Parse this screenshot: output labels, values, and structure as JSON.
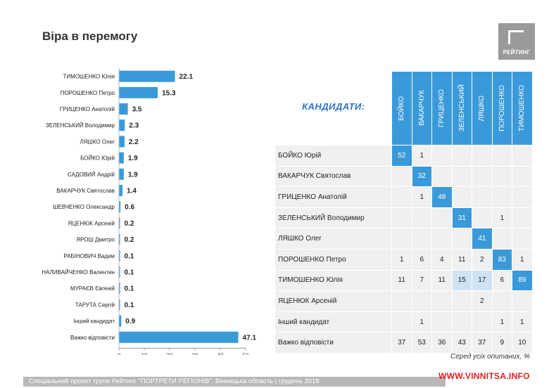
{
  "title": "Віра в перемогу",
  "logo": {
    "text": "РЕЙТИНГ"
  },
  "chart_data": {
    "type": "bar",
    "orientation": "horizontal",
    "categories": [
      "ТИМОШЕНКО Юлія",
      "ПОРОШЕНКО Петро",
      "ГРИЦЕНКО Анатолій",
      "ЗЕЛЕНСЬКИЙ Володимир",
      "ЛЯШКО Олег",
      "БОЙКО Юрій",
      "САДОВИЙ Андрій",
      "ВАКАРЧУК Святослав",
      "ШЕВЧЕНКО Олександр",
      "ЯЦЕНЮК Арсеній",
      "ЯРОШ Дмитро",
      "РАБІНОВИЧ Вадим",
      "НАЛИВАЙЧЕНКО Валентин",
      "МУРАЄВ Євгеній",
      "ТАРУТА Сергій",
      "Інший кандидат",
      "Важко відповісти"
    ],
    "values": [
      22.1,
      15.3,
      3.5,
      2.3,
      2.2,
      1.9,
      1.9,
      1.4,
      0.6,
      0.2,
      0.2,
      0.1,
      0.1,
      0.1,
      0.1,
      0.9,
      47.1
    ],
    "labels": [
      "22.1",
      "15.3",
      "3.5",
      "2.3",
      "2.2",
      "1.9",
      "1.9",
      "1.4",
      "0.6",
      "0.2",
      "0.2",
      "0.1",
      "0.1",
      "0.1",
      "0.1",
      "0.9",
      "47.1"
    ],
    "xlim": [
      0,
      50
    ],
    "xticks": [
      "0",
      "10",
      "20",
      "30",
      "40",
      "50"
    ],
    "color": "#3a9ad9",
    "grid": false
  },
  "matrix": {
    "heading": "КАНДИДАТИ:",
    "columns": [
      "БОЙКО",
      "ВАКАРЧУК",
      "ГРИЦЕНКО",
      "ЗЕЛЕНСЬКИЙ",
      "ЛЯШКО",
      "ПОРОШЕНКО",
      "ТИМОШЕНКО"
    ],
    "rows": [
      {
        "name": "БОЙКО Юрій",
        "cells": [
          "52",
          "1",
          "",
          "",
          "",
          "",
          ""
        ]
      },
      {
        "name": "ВАКАРЧУК Святослав",
        "cells": [
          "",
          "32",
          "",
          "",
          "",
          "",
          ""
        ]
      },
      {
        "name": "ГРИЦЕНКО Анатолій",
        "cells": [
          "",
          "1",
          "48",
          "",
          "",
          "",
          ""
        ]
      },
      {
        "name": "ЗЕЛЕНСЬКИЙ Володимир",
        "cells": [
          "",
          "",
          "",
          "31",
          "",
          "1",
          ""
        ]
      },
      {
        "name": "ЛЯШКО Олег",
        "cells": [
          "",
          "",
          "",
          "",
          "41",
          "",
          ""
        ]
      },
      {
        "name": "ПОРОШЕНКО Петро",
        "cells": [
          "1",
          "6",
          "4",
          "11",
          "2",
          "83",
          "1"
        ]
      },
      {
        "name": "ТИМОШЕНКО Юлія",
        "cells": [
          "11",
          "7",
          "11",
          "15",
          "17",
          "6",
          "89"
        ]
      },
      {
        "name": "ЯЦЕНЮК Арсеній",
        "cells": [
          "",
          "",
          "",
          "",
          "2",
          "",
          ""
        ]
      },
      {
        "name": "Інший кандидат",
        "cells": [
          "",
          "1",
          "",
          "",
          "",
          "1",
          "1"
        ]
      },
      {
        "name": "Важко відповісти",
        "cells": [
          "37",
          "53",
          "36",
          "43",
          "37",
          "9",
          "10"
        ]
      }
    ],
    "highlight": [
      "0,0",
      "1,1",
      "2,2",
      "3,3",
      "4,4",
      "5,5",
      "6,6"
    ],
    "light": [
      "6,3",
      "6,4"
    ],
    "highlight_color": "#3a9ad9",
    "light_color": "#cfe3f4"
  },
  "note": "Серед усіх опитаних, %",
  "footer": "Спеціальний проект групи Рейтинг \"ПОРТРЕТИ РЕГІОНІВ\". Вінницька область | грудень 2018",
  "watermark": "WWW.VINNITSA.INFO"
}
